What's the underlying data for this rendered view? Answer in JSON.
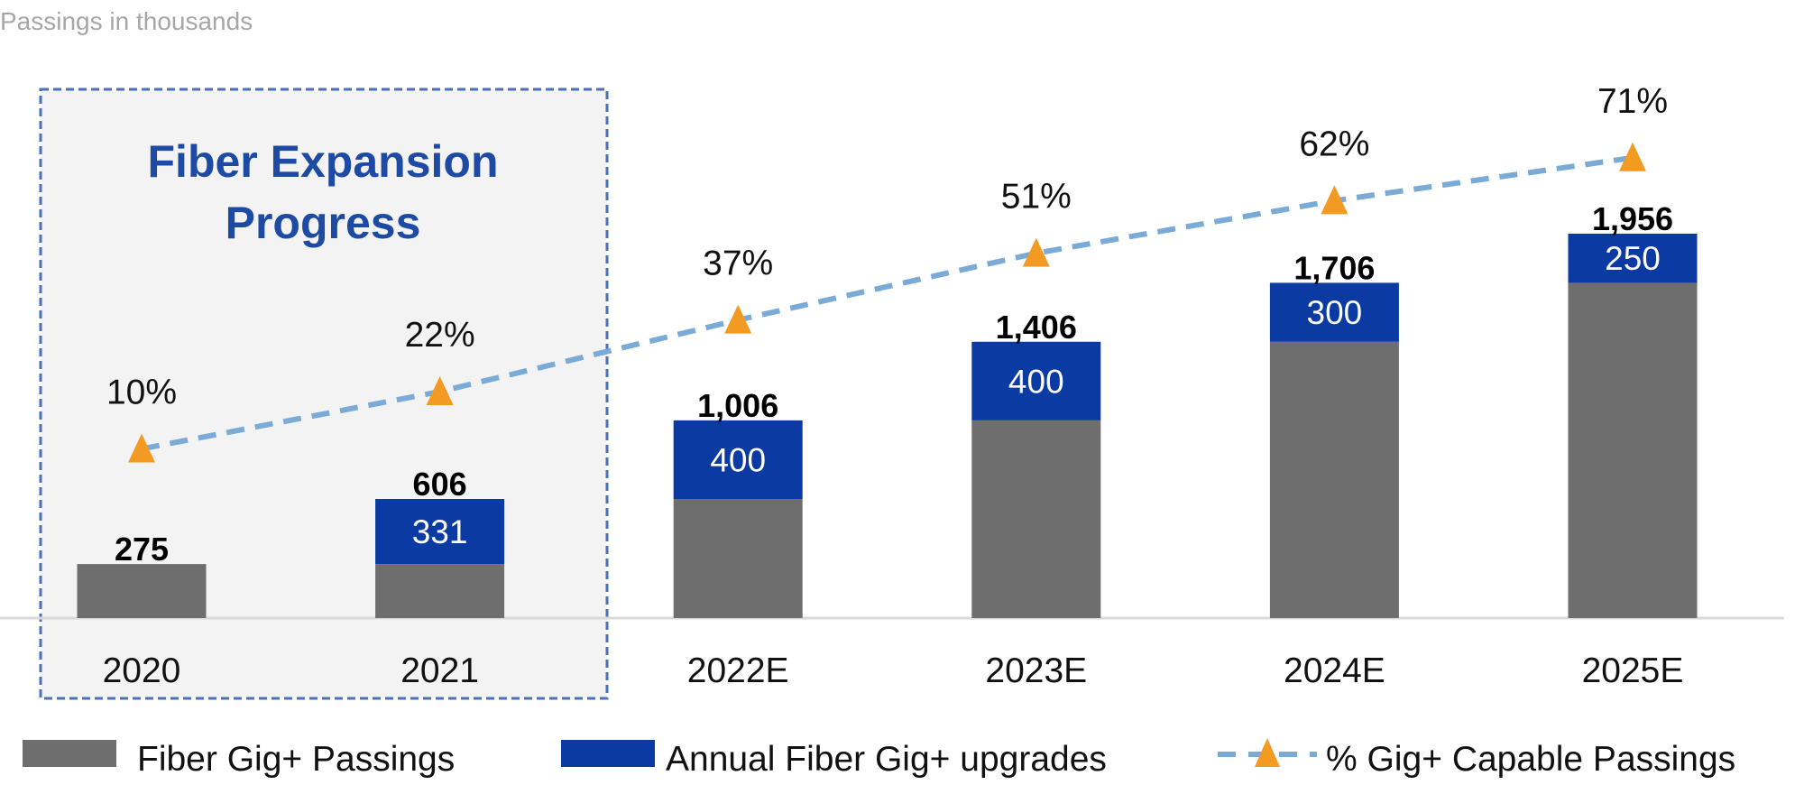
{
  "chart_data": {
    "type": "bar",
    "subtitle": "Passings in thousands",
    "callout": {
      "lines": [
        "Fiber Expansion",
        "Progress"
      ],
      "covers": [
        "2020",
        "2021"
      ]
    },
    "categories": [
      "2020",
      "2021",
      "2022E",
      "2023E",
      "2024E",
      "2025E"
    ],
    "stacked": true,
    "totals": [
      "275",
      "606",
      "1,006",
      "1,406",
      "1,706",
      "1,956"
    ],
    "series": [
      {
        "name": "Fiber Gig+ Passings",
        "kind": "bar",
        "color": "#6e6e6e",
        "values": [
          275,
          275,
          606,
          1006,
          1406,
          1706
        ]
      },
      {
        "name": "Annual Fiber Gig+ upgrades",
        "kind": "bar",
        "color": "#0b3aa3",
        "values": [
          0,
          331,
          400,
          400,
          300,
          250
        ]
      },
      {
        "name": "% Gig+ Capable Passings",
        "kind": "line",
        "style": "dashed",
        "marker": "triangle",
        "color": "#7aaad6",
        "marker_color": "#f39a22",
        "values": [
          10,
          22,
          37,
          51,
          62,
          71
        ],
        "labels": [
          "10%",
          "22%",
          "37%",
          "51%",
          "62%",
          "71%"
        ]
      }
    ],
    "upgrade_labels": [
      "",
      "331",
      "400",
      "400",
      "300",
      "250"
    ],
    "grid": false,
    "legend": "bottom"
  }
}
